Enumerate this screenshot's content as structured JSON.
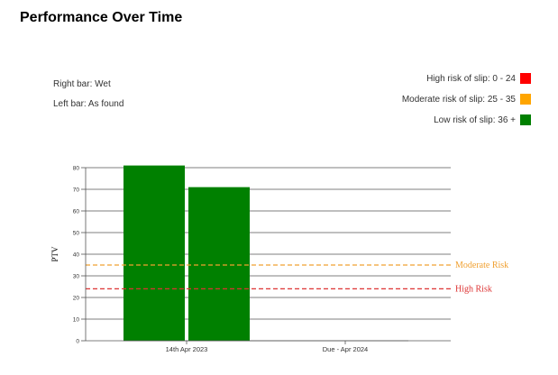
{
  "page": {
    "title": "Performance Over Time"
  },
  "notes": {
    "right_bar": "Right bar: Wet",
    "left_bar": "Left bar: As found"
  },
  "legend": [
    {
      "label": "High risk of slip: 0 - 24",
      "color": "#ff0000"
    },
    {
      "label": "Moderate risk of slip: 25 - 35",
      "color": "#ffa500"
    },
    {
      "label": "Low risk of slip: 36 +",
      "color": "#008000"
    }
  ],
  "chart_data": {
    "type": "bar",
    "ylabel": "PTV",
    "xlabel": "",
    "ylim": [
      0,
      80
    ],
    "yticks": [
      0,
      10,
      20,
      30,
      40,
      50,
      60,
      70,
      80
    ],
    "categories": [
      "14th Apr 2023",
      "Due - Apr 2024"
    ],
    "series": [
      {
        "values": [
          81,
          null
        ],
        "color": "#008000"
      },
      {
        "values": [
          71,
          null
        ],
        "color": "#008000"
      }
    ],
    "reference_lines": [
      {
        "label": "Moderate Risk",
        "value": 35,
        "color": "#f0a030"
      },
      {
        "label": "High Risk",
        "value": 24,
        "color": "#dd3333"
      }
    ],
    "grid": true
  }
}
